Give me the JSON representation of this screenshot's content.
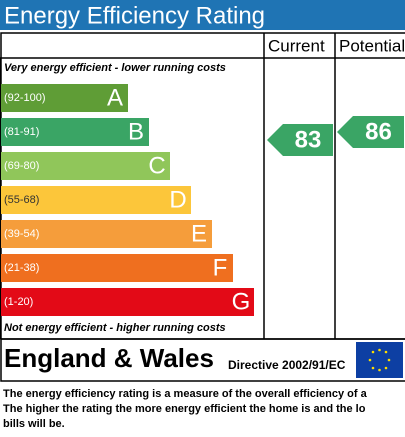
{
  "header": {
    "title": "Energy Efficiency Rating",
    "col_current": "Current",
    "col_potential": "Potential"
  },
  "top_note": "Very energy efficient - lower running costs",
  "bottom_note": "Not energy efficient - higher running costs",
  "bands": [
    {
      "range": "(92-100)",
      "letter": "A",
      "color": "#5f9d36"
    },
    {
      "range": "(81-91)",
      "letter": "B",
      "color": "#3aa565"
    },
    {
      "range": "(69-80)",
      "letter": "C",
      "color": "#90c65a"
    },
    {
      "range": "(55-68)",
      "letter": "D",
      "color": "#fcc63a"
    },
    {
      "range": "(39-54)",
      "letter": "E",
      "color": "#f59d3b"
    },
    {
      "range": "(21-38)",
      "letter": "F",
      "color": "#ef6f1f"
    },
    {
      "range": "(1-20)",
      "letter": "G",
      "color": "#e30a17"
    }
  ],
  "current": {
    "value": "83",
    "color": "#3aa565"
  },
  "potential": {
    "value": "86",
    "color": "#3aa565"
  },
  "footer": {
    "region": "England & Wales",
    "directive": "Directive 2002/91/EC"
  },
  "description": [
    "The energy efficiency rating is a measure of the overall efficiency of a",
    "The higher the rating the more energy efficient the home is and the lo",
    "bills will be."
  ]
}
